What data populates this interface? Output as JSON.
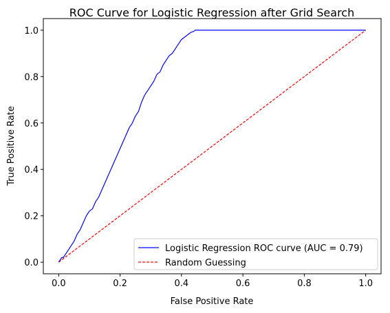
{
  "chart_data": {
    "type": "line",
    "title": "ROC Curve for Logistic Regression after Grid Search",
    "xlabel": "False Positive Rate",
    "ylabel": "True Positive Rate",
    "xlim": [
      -0.05,
      1.05
    ],
    "ylim": [
      -0.05,
      1.05
    ],
    "xticks": [
      0.0,
      0.2,
      0.4,
      0.6,
      0.8,
      1.0
    ],
    "yticks": [
      0.0,
      0.2,
      0.4,
      0.6,
      0.8,
      1.0
    ],
    "xtick_labels": [
      "0.0",
      "0.2",
      "0.4",
      "0.6",
      "0.8",
      "1.0"
    ],
    "ytick_labels": [
      "0.0",
      "0.2",
      "0.4",
      "0.6",
      "0.8",
      "1.0"
    ],
    "grid": false,
    "legend_position": "lower-right",
    "series": [
      {
        "name": "Logistic Regression ROC curve (AUC = 0.79)",
        "color": "#0000ff",
        "style": "solid",
        "x": [
          0.0,
          0.005,
          0.01,
          0.015,
          0.02,
          0.03,
          0.04,
          0.05,
          0.06,
          0.07,
          0.08,
          0.09,
          0.1,
          0.11,
          0.12,
          0.13,
          0.14,
          0.15,
          0.16,
          0.17,
          0.18,
          0.19,
          0.2,
          0.21,
          0.22,
          0.23,
          0.24,
          0.25,
          0.26,
          0.27,
          0.28,
          0.29,
          0.3,
          0.31,
          0.32,
          0.33,
          0.34,
          0.35,
          0.36,
          0.37,
          0.38,
          0.39,
          0.4,
          0.41,
          0.42,
          0.43,
          0.44,
          0.445,
          1.0
        ],
        "y": [
          0.0,
          0.01,
          0.02,
          0.02,
          0.03,
          0.05,
          0.07,
          0.09,
          0.12,
          0.14,
          0.17,
          0.2,
          0.22,
          0.23,
          0.26,
          0.28,
          0.31,
          0.34,
          0.37,
          0.4,
          0.43,
          0.46,
          0.49,
          0.52,
          0.55,
          0.58,
          0.6,
          0.63,
          0.65,
          0.69,
          0.72,
          0.74,
          0.76,
          0.78,
          0.81,
          0.82,
          0.85,
          0.87,
          0.89,
          0.9,
          0.92,
          0.94,
          0.96,
          0.97,
          0.98,
          0.99,
          0.995,
          1.0,
          1.0
        ]
      },
      {
        "name": "Random Guessing",
        "color": "#ff0000",
        "style": "dashed",
        "x": [
          0.0,
          1.0
        ],
        "y": [
          0.0,
          1.0
        ]
      }
    ]
  }
}
